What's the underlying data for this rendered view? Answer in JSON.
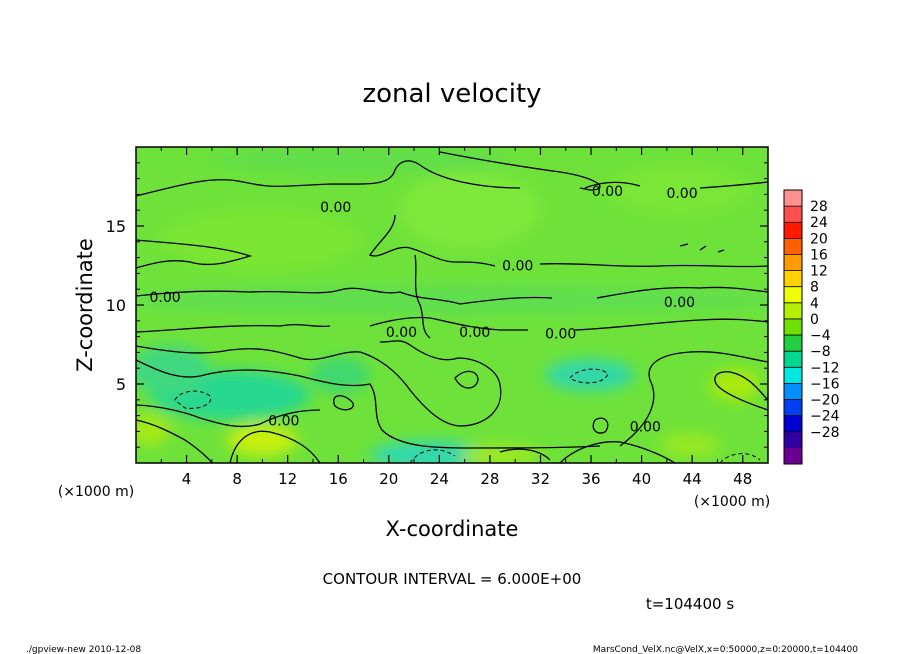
{
  "chart_data": {
    "type": "heatmap",
    "title": "zonal velocity",
    "xlabel": "X-coordinate",
    "ylabel": "Z-coordinate",
    "x_unit_label": "(×1000 m)",
    "x_unit_label_right": "(×1000 m)",
    "xlim": [
      0,
      50
    ],
    "ylim": [
      0,
      20
    ],
    "x_ticks": [
      4,
      8,
      12,
      16,
      20,
      24,
      28,
      32,
      36,
      40,
      44,
      48
    ],
    "y_ticks": [
      5,
      10,
      15
    ],
    "colorbar": {
      "labels": [
        "28",
        "24",
        "20",
        "16",
        "12",
        "8",
        "4",
        "0",
        "−4",
        "−8",
        "−12",
        "−16",
        "−20",
        "−24",
        "−28"
      ],
      "colors": [
        "#ff9090",
        "#ff5050",
        "#ff1a00",
        "#ff6000",
        "#ff9a00",
        "#ffd200",
        "#f0ff00",
        "#b4f000",
        "#70e000",
        "#20d040",
        "#00d890",
        "#00e8e0",
        "#0090ff",
        "#0040f0",
        "#0000d0",
        "#3000a0",
        "#6a0090"
      ]
    },
    "contour_labels": [
      {
        "text": "0.00",
        "x": 15.8,
        "z": 16.2
      },
      {
        "text": "0.00",
        "x": 37.3,
        "z": 17.2
      },
      {
        "text": "0.00",
        "x": 43.2,
        "z": 17.1
      },
      {
        "text": "0.00",
        "x": 30.2,
        "z": 12.5
      },
      {
        "text": "0.00",
        "x": 43.0,
        "z": 10.2
      },
      {
        "text": "0.00",
        "x": 2.3,
        "z": 10.5
      },
      {
        "text": "0.00",
        "x": 21.0,
        "z": 8.3
      },
      {
        "text": "0.00",
        "x": 26.8,
        "z": 8.3
      },
      {
        "text": "0.00",
        "x": 33.6,
        "z": 8.2
      },
      {
        "text": "0.00",
        "x": 11.7,
        "z": 2.7
      },
      {
        "text": "0.00",
        "x": 40.3,
        "z": 2.3
      }
    ],
    "contour_interval_text": "CONTOUR INTERVAL = 6.000E+00",
    "time_text": "t=104400 s"
  },
  "footer": {
    "left": "./gpview-new  2010-12-08",
    "right": "MarsCond_VelX.nc@VelX,x=0:50000,z=0:20000,t=104400"
  }
}
